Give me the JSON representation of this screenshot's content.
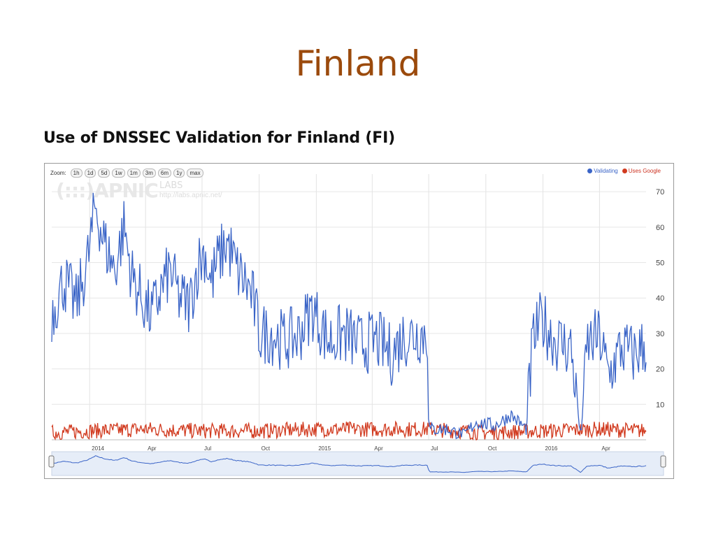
{
  "slide": {
    "title": "Finland",
    "heading": "Use of DNSSEC Validation for Finland (FI)"
  },
  "controls": {
    "zoom_label": "Zoom:",
    "zoom_buttons": [
      "1h",
      "1d",
      "5d",
      "1w",
      "1m",
      "3m",
      "6m",
      "1y",
      "max"
    ]
  },
  "watermark": {
    "logo": "(:::)APNIC",
    "labs": "LABS",
    "url": "http://labs.apnic.net/"
  },
  "colors": {
    "validating": "#3a64c7",
    "google": "#d13a1f",
    "navigator_fill": "#e6edf8"
  },
  "chart_data": {
    "type": "line",
    "y_ticks": [
      10,
      20,
      30,
      40,
      50,
      60,
      70
    ],
    "ylim": [
      0,
      72
    ],
    "x_range": [
      "2013-11-01",
      "2016-06-15"
    ],
    "x_ticks": [
      {
        "date": "2014-01-01",
        "label": "2014"
      },
      {
        "date": "2014-04-01",
        "label": "Apr"
      },
      {
        "date": "2014-07-01",
        "label": "Jul"
      },
      {
        "date": "2014-10-01",
        "label": "Oct"
      },
      {
        "date": "2015-01-01",
        "label": "2015"
      },
      {
        "date": "2015-04-01",
        "label": "Apr"
      },
      {
        "date": "2015-07-01",
        "label": "Jul"
      },
      {
        "date": "2015-10-01",
        "label": "Oct"
      },
      {
        "date": "2016-01-01",
        "label": "2016"
      },
      {
        "date": "2016-04-01",
        "label": "Apr"
      }
    ],
    "legend_position": "top-right",
    "grid": true,
    "series": [
      {
        "name": "Validating",
        "points": [
          [
            "2013-11-01",
            36
          ],
          [
            "2013-11-20",
            45
          ],
          [
            "2013-12-10",
            38
          ],
          [
            "2013-12-28",
            50
          ],
          [
            "2014-01-10",
            66
          ],
          [
            "2014-01-25",
            55
          ],
          [
            "2014-02-10",
            48
          ],
          [
            "2014-02-25",
            60
          ],
          [
            "2014-03-10",
            46
          ],
          [
            "2014-03-25",
            40
          ],
          [
            "2014-04-10",
            35
          ],
          [
            "2014-04-25",
            42
          ],
          [
            "2014-05-10",
            48
          ],
          [
            "2014-05-25",
            40
          ],
          [
            "2014-06-10",
            38
          ],
          [
            "2014-06-25",
            50
          ],
          [
            "2014-07-05",
            53
          ],
          [
            "2014-07-15",
            44
          ],
          [
            "2014-07-25",
            50
          ],
          [
            "2014-08-10",
            56
          ],
          [
            "2014-08-25",
            48
          ],
          [
            "2014-09-10",
            44
          ],
          [
            "2014-09-20",
            40
          ],
          [
            "2014-10-01",
            30
          ],
          [
            "2014-10-20",
            30
          ],
          [
            "2014-11-10",
            28
          ],
          [
            "2014-12-01",
            29
          ],
          [
            "2014-12-25",
            37
          ],
          [
            "2015-01-20",
            28
          ],
          [
            "2015-02-15",
            30
          ],
          [
            "2015-03-10",
            27
          ],
          [
            "2015-04-10",
            28
          ],
          [
            "2015-05-01",
            24
          ],
          [
            "2015-05-20",
            29
          ],
          [
            "2015-06-10",
            30
          ],
          [
            "2015-06-28",
            30
          ],
          [
            "2015-07-01",
            3
          ],
          [
            "2015-08-01",
            3
          ],
          [
            "2015-08-25",
            1
          ],
          [
            "2015-09-15",
            5
          ],
          [
            "2015-10-15",
            4
          ],
          [
            "2015-11-10",
            7
          ],
          [
            "2015-12-05",
            3
          ],
          [
            "2015-12-15",
            28
          ],
          [
            "2015-12-30",
            34
          ],
          [
            "2016-01-20",
            28
          ],
          [
            "2016-02-15",
            26
          ],
          [
            "2016-03-01",
            1
          ],
          [
            "2016-03-12",
            27
          ],
          [
            "2016-04-01",
            29
          ],
          [
            "2016-04-15",
            18
          ],
          [
            "2016-05-05",
            26
          ],
          [
            "2016-05-25",
            24
          ],
          [
            "2016-06-15",
            27
          ]
        ]
      },
      {
        "name": "Uses Google",
        "points": [
          [
            "2013-11-01",
            2
          ],
          [
            "2014-01-01",
            2.5
          ],
          [
            "2014-04-01",
            3
          ],
          [
            "2014-07-01",
            2.5
          ],
          [
            "2014-10-01",
            2.5
          ],
          [
            "2015-01-01",
            3
          ],
          [
            "2015-04-01",
            3
          ],
          [
            "2015-07-01",
            3
          ],
          [
            "2015-10-01",
            2
          ],
          [
            "2016-01-01",
            2.5
          ],
          [
            "2016-04-01",
            3
          ],
          [
            "2016-06-15",
            2.5
          ]
        ]
      }
    ]
  }
}
